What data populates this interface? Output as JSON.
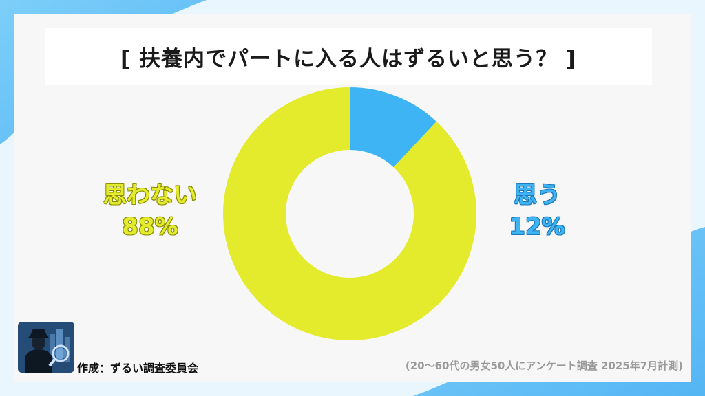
{
  "chart_data": {
    "type": "pie",
    "title": "[ 扶養内でパートに入る人はずるいと思う？ ]",
    "categories": [
      "思う",
      "思わない"
    ],
    "values": [
      12,
      88
    ],
    "value_labels": [
      "12%",
      "88%"
    ],
    "colors": [
      "#3fb4f5",
      "#e4ea2c"
    ],
    "hole": true
  },
  "footer": {
    "credit": "作成：ずるい調査委員会",
    "note": "(20～60代の男女50人にアンケート調査 2025年7月計測)"
  },
  "icons": {
    "logo": "detective-magnifier-logo"
  }
}
